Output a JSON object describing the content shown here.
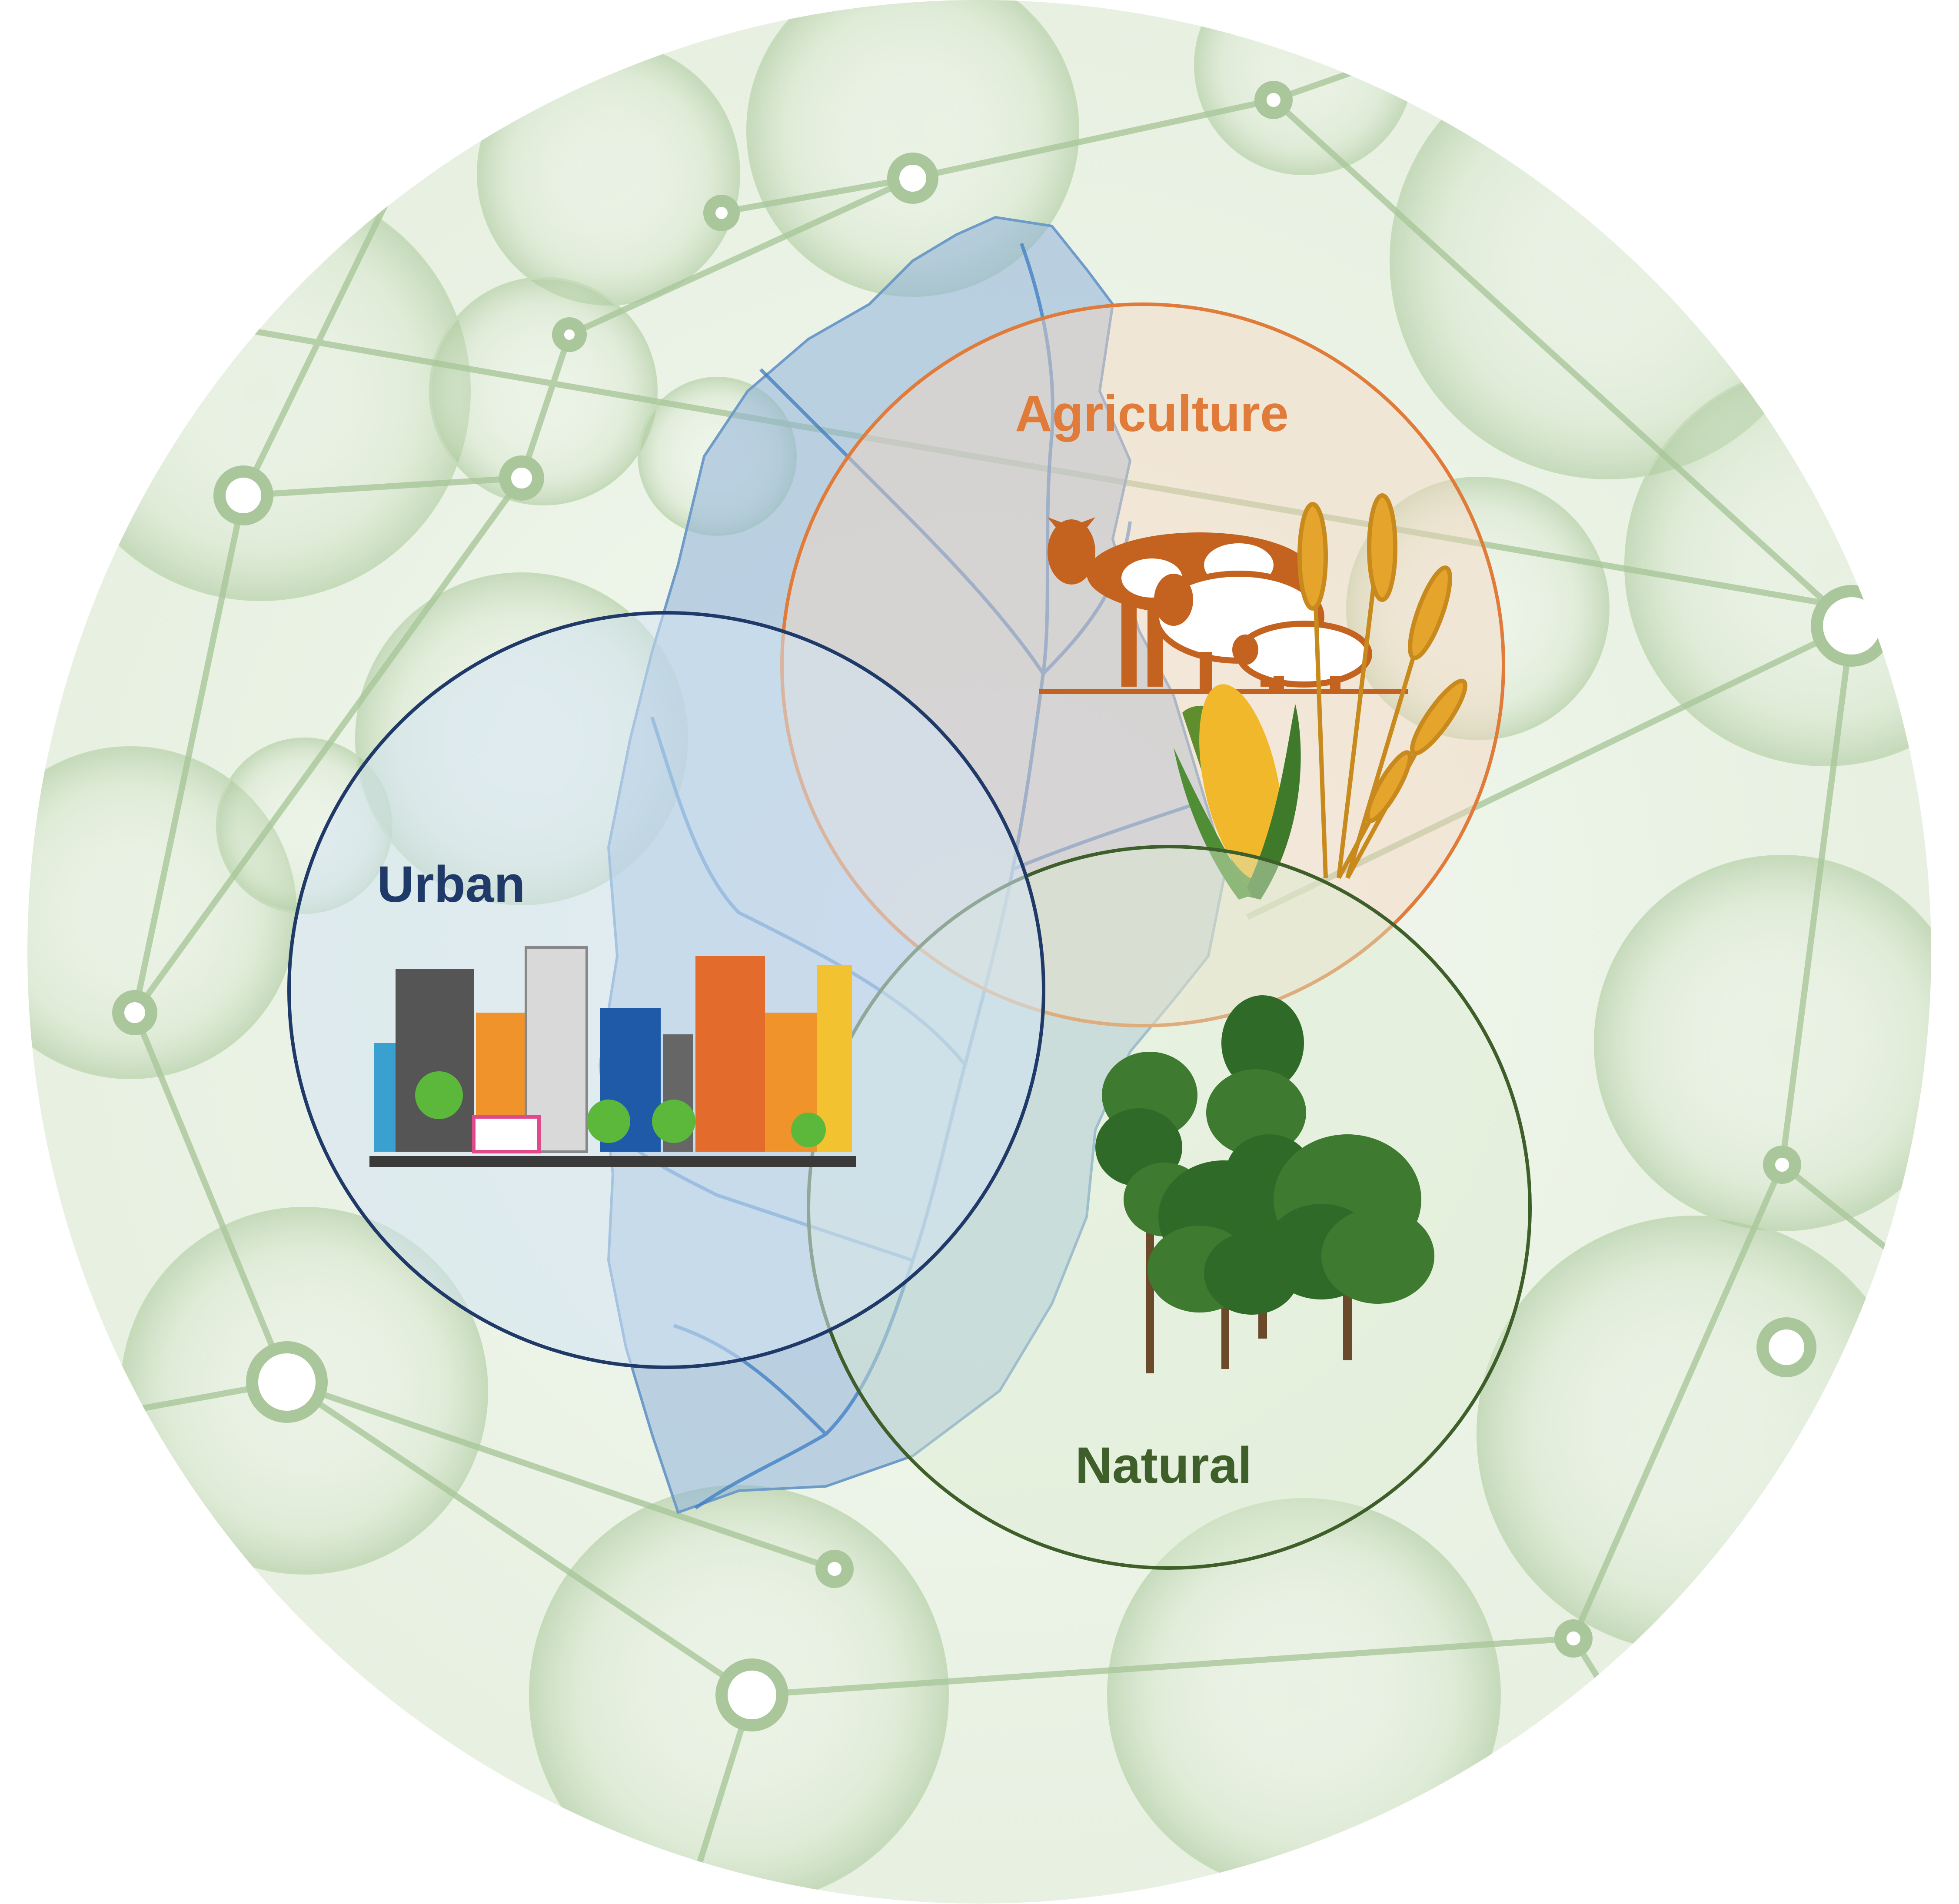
{
  "labels": {
    "agriculture": "Agriculture",
    "urban": "Urban",
    "natural": "Natural"
  },
  "colors": {
    "agriculture": "#E07B39",
    "urban": "#1F3A68",
    "natural": "#3E5F2A",
    "network": "#A9C79A",
    "river": "#3B7CC4",
    "watershed": "#8FB3DA"
  },
  "icons": {
    "agriculture": [
      "cow-icon",
      "sheep-icon",
      "pig-icon",
      "corn-icon",
      "wheat-icon"
    ],
    "urban": "city-skyline-icon",
    "natural": "trees-icon"
  }
}
